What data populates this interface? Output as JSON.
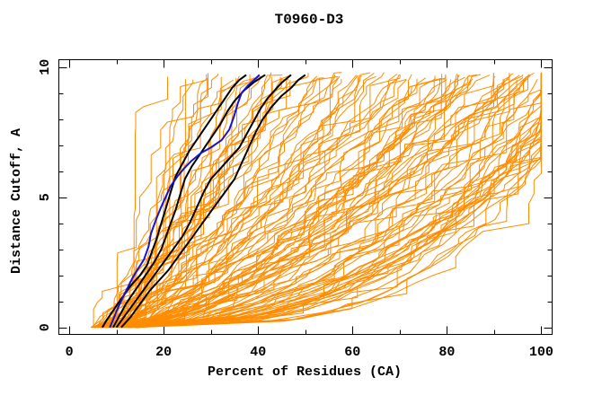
{
  "chart_data": {
    "type": "line",
    "title": "T0960-D3",
    "xlabel": "Percent of Residues (CA)",
    "ylabel": "Distance Cutoff, A",
    "xlim": [
      -2.3,
      102.2
    ],
    "ylim": [
      -0.25,
      10.3
    ],
    "x_ticks_major": [
      0,
      20,
      40,
      60,
      80,
      100
    ],
    "x_ticks_minor": [
      10,
      30,
      50,
      70,
      90
    ],
    "y_ticks_major": [
      0,
      5,
      10
    ],
    "y_ticks_minor": [
      1,
      2,
      3,
      4,
      6,
      7,
      8,
      9
    ],
    "grid": false,
    "legend": "none",
    "colors": {
      "frame": "#000000",
      "ensemble": "#FF8C00",
      "highlight_black": "#000000",
      "highlight_blue": "#1414D2",
      "background": "#FFFFFF"
    },
    "series": [
      {
        "name": "highlight-black-1",
        "color": "#000000",
        "width": 2,
        "points": [
          [
            7,
            0
          ],
          [
            8,
            0.3
          ],
          [
            9.5,
            0.7
          ],
          [
            11,
            1.1
          ],
          [
            13,
            1.6
          ],
          [
            15,
            2.0
          ],
          [
            16.5,
            2.4
          ],
          [
            17.5,
            2.9
          ],
          [
            18.5,
            3.4
          ],
          [
            19.5,
            4.0
          ],
          [
            20.5,
            4.6
          ],
          [
            21.5,
            5.2
          ],
          [
            22.5,
            5.8
          ],
          [
            24,
            6.3
          ],
          [
            25.5,
            6.8
          ],
          [
            27,
            7.2
          ],
          [
            28.5,
            7.6
          ],
          [
            30,
            8.0
          ],
          [
            31.5,
            8.4
          ],
          [
            33,
            8.8
          ],
          [
            34.5,
            9.2
          ],
          [
            36,
            9.5
          ],
          [
            37.5,
            9.7
          ]
        ]
      },
      {
        "name": "highlight-black-2",
        "color": "#000000",
        "width": 2,
        "points": [
          [
            9.3,
            0
          ],
          [
            10.5,
            0.4
          ],
          [
            12,
            0.9
          ],
          [
            13.5,
            1.3
          ],
          [
            15,
            1.7
          ],
          [
            16.5,
            2.1
          ],
          [
            18,
            2.5
          ],
          [
            19.5,
            3.0
          ],
          [
            20.5,
            3.5
          ],
          [
            21.5,
            4.0
          ],
          [
            22.5,
            4.5
          ],
          [
            23.5,
            5.1
          ],
          [
            24.5,
            5.7
          ],
          [
            26,
            6.2
          ],
          [
            27.5,
            6.6
          ],
          [
            29,
            7.0
          ],
          [
            30.5,
            7.4
          ],
          [
            32,
            7.8
          ],
          [
            33.5,
            8.3
          ],
          [
            35,
            8.7
          ],
          [
            37,
            9.1
          ],
          [
            39,
            9.4
          ],
          [
            41.5,
            9.7
          ]
        ]
      },
      {
        "name": "highlight-black-3",
        "color": "#000000",
        "width": 2,
        "points": [
          [
            10,
            0
          ],
          [
            12,
            0.5
          ],
          [
            14,
            1.0
          ],
          [
            16,
            1.5
          ],
          [
            18,
            2.0
          ],
          [
            20,
            2.5
          ],
          [
            22,
            3.0
          ],
          [
            24,
            3.5
          ],
          [
            25.5,
            4.0
          ],
          [
            27,
            4.6
          ],
          [
            28.5,
            5.2
          ],
          [
            30,
            5.7
          ],
          [
            32,
            6.1
          ],
          [
            34,
            6.5
          ],
          [
            36,
            6.9
          ],
          [
            37.5,
            7.4
          ],
          [
            39,
            7.9
          ],
          [
            40.5,
            8.4
          ],
          [
            42,
            8.8
          ],
          [
            43.5,
            9.1
          ],
          [
            45,
            9.4
          ],
          [
            47,
            9.7
          ]
        ]
      },
      {
        "name": "highlight-black-4",
        "color": "#000000",
        "width": 2,
        "points": [
          [
            11,
            0
          ],
          [
            13,
            0.4
          ],
          [
            15,
            0.9
          ],
          [
            17,
            1.4
          ],
          [
            19,
            1.8
          ],
          [
            21,
            2.2
          ],
          [
            23,
            2.7
          ],
          [
            25,
            3.2
          ],
          [
            27,
            3.7
          ],
          [
            29,
            4.2
          ],
          [
            31,
            4.7
          ],
          [
            33,
            5.2
          ],
          [
            35,
            5.7
          ],
          [
            36.5,
            6.3
          ],
          [
            38,
            6.9
          ],
          [
            39.5,
            7.5
          ],
          [
            41,
            8.0
          ],
          [
            43,
            8.5
          ],
          [
            45,
            8.9
          ],
          [
            47,
            9.2
          ],
          [
            48.5,
            9.5
          ],
          [
            50,
            9.7
          ]
        ]
      },
      {
        "name": "highlight-blue",
        "color": "#1414D2",
        "width": 2,
        "points": [
          [
            8.6,
            0
          ],
          [
            9.3,
            0.3
          ],
          [
            10.2,
            0.7
          ],
          [
            11.2,
            1.1
          ],
          [
            12.3,
            1.5
          ],
          [
            13.4,
            1.9
          ],
          [
            14.4,
            2.2
          ],
          [
            15.8,
            2.6
          ],
          [
            16.8,
            3.1
          ],
          [
            17.3,
            3.6
          ],
          [
            18.3,
            4.1
          ],
          [
            19.4,
            4.6
          ],
          [
            20.4,
            5.0
          ],
          [
            21.4,
            5.4
          ],
          [
            22.9,
            5.8
          ],
          [
            24.3,
            6.1
          ],
          [
            25.9,
            6.4
          ],
          [
            27.9,
            6.7
          ],
          [
            29.9,
            6.9
          ],
          [
            32.3,
            7.2
          ],
          [
            33.9,
            7.6
          ],
          [
            34.9,
            8.1
          ],
          [
            35.7,
            8.6
          ],
          [
            36.5,
            9.0
          ],
          [
            37.9,
            9.3
          ],
          [
            39.4,
            9.55
          ],
          [
            40.3,
            9.7
          ]
        ]
      }
    ],
    "ensemble": {
      "description": "Approximately 120 orange model curves (cumulative percent of CA residues vs distance cutoff); monotone rising jagged polylines spanning from steep near-vertical curves ending near x=16 to shallow curves hugging the bottom band that reach x=100 and rise vertically at the right edge; all curves start at y=0 between x=4.5 and x=14.5 and terminate near y=9.7.",
      "color": "#FF8C00",
      "count": 120,
      "seed": 42,
      "stroke_width": 1,
      "x_start_range": [
        4.5,
        14.5
      ],
      "x_end_range": [
        15,
        115
      ],
      "x_clip_max": 100,
      "y_end_range": [
        9.5,
        9.8
      ]
    }
  }
}
